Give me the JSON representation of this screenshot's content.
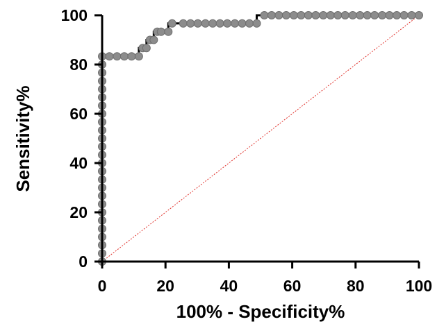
{
  "chart_data": {
    "type": "line",
    "xlabel": "100% - Specificity%",
    "ylabel": "Sensitivity%",
    "xlim": [
      0,
      100
    ],
    "ylim": [
      0,
      100
    ],
    "xticks": [
      "0",
      "20",
      "40",
      "60",
      "80",
      "100"
    ],
    "yticks": [
      "0",
      "20",
      "40",
      "60",
      "80",
      "100"
    ],
    "grid": false,
    "series": [
      {
        "style": "step",
        "color": "#000000",
        "marker_color": "#8c8c8c",
        "points": [
          [
            0,
            0
          ],
          [
            0,
            3.3
          ],
          [
            0,
            6.7
          ],
          [
            0,
            10
          ],
          [
            0,
            13.3
          ],
          [
            0,
            16.7
          ],
          [
            0,
            20
          ],
          [
            0,
            23.3
          ],
          [
            0,
            26.7
          ],
          [
            0,
            30
          ],
          [
            0,
            33.3
          ],
          [
            0,
            36.7
          ],
          [
            0,
            40
          ],
          [
            0,
            43.3
          ],
          [
            0,
            46.7
          ],
          [
            0,
            50
          ],
          [
            0,
            53.3
          ],
          [
            0,
            56.7
          ],
          [
            0,
            60
          ],
          [
            0,
            63.3
          ],
          [
            0,
            66.7
          ],
          [
            0,
            70
          ],
          [
            0,
            73.3
          ],
          [
            0,
            76.7
          ],
          [
            0,
            80
          ],
          [
            0,
            83.3
          ],
          [
            2.3,
            83.3
          ],
          [
            4.7,
            83.3
          ],
          [
            7,
            83.3
          ],
          [
            9.3,
            83.3
          ],
          [
            11.6,
            83.3
          ],
          [
            12.8,
            86.7
          ],
          [
            14,
            86.7
          ],
          [
            15.1,
            90
          ],
          [
            16.3,
            90
          ],
          [
            17.4,
            93.3
          ],
          [
            18.6,
            93.3
          ],
          [
            20.9,
            93.3
          ],
          [
            22.1,
            96.7
          ],
          [
            25.6,
            96.7
          ],
          [
            27.9,
            96.7
          ],
          [
            30.2,
            96.7
          ],
          [
            32.6,
            96.7
          ],
          [
            34.9,
            96.7
          ],
          [
            37.2,
            96.7
          ],
          [
            39.5,
            96.7
          ],
          [
            41.9,
            96.7
          ],
          [
            44.2,
            96.7
          ],
          [
            46.5,
            96.7
          ],
          [
            48.8,
            96.7
          ],
          [
            51.2,
            100
          ],
          [
            53.5,
            100
          ],
          [
            55.8,
            100
          ],
          [
            58.1,
            100
          ],
          [
            60.5,
            100
          ],
          [
            62.8,
            100
          ],
          [
            65.1,
            100
          ],
          [
            67.4,
            100
          ],
          [
            69.8,
            100
          ],
          [
            72.1,
            100
          ],
          [
            74.4,
            100
          ],
          [
            76.7,
            100
          ],
          [
            79.1,
            100
          ],
          [
            81.4,
            100
          ],
          [
            83.7,
            100
          ],
          [
            86,
            100
          ],
          [
            88.4,
            100
          ],
          [
            90.7,
            100
          ],
          [
            93,
            100
          ],
          [
            95.3,
            100
          ],
          [
            97.7,
            100
          ],
          [
            100,
            100
          ]
        ]
      }
    ],
    "reference_line": {
      "from": [
        0,
        0
      ],
      "to": [
        100,
        100
      ],
      "color": "#e0302a",
      "dashed": true
    }
  }
}
